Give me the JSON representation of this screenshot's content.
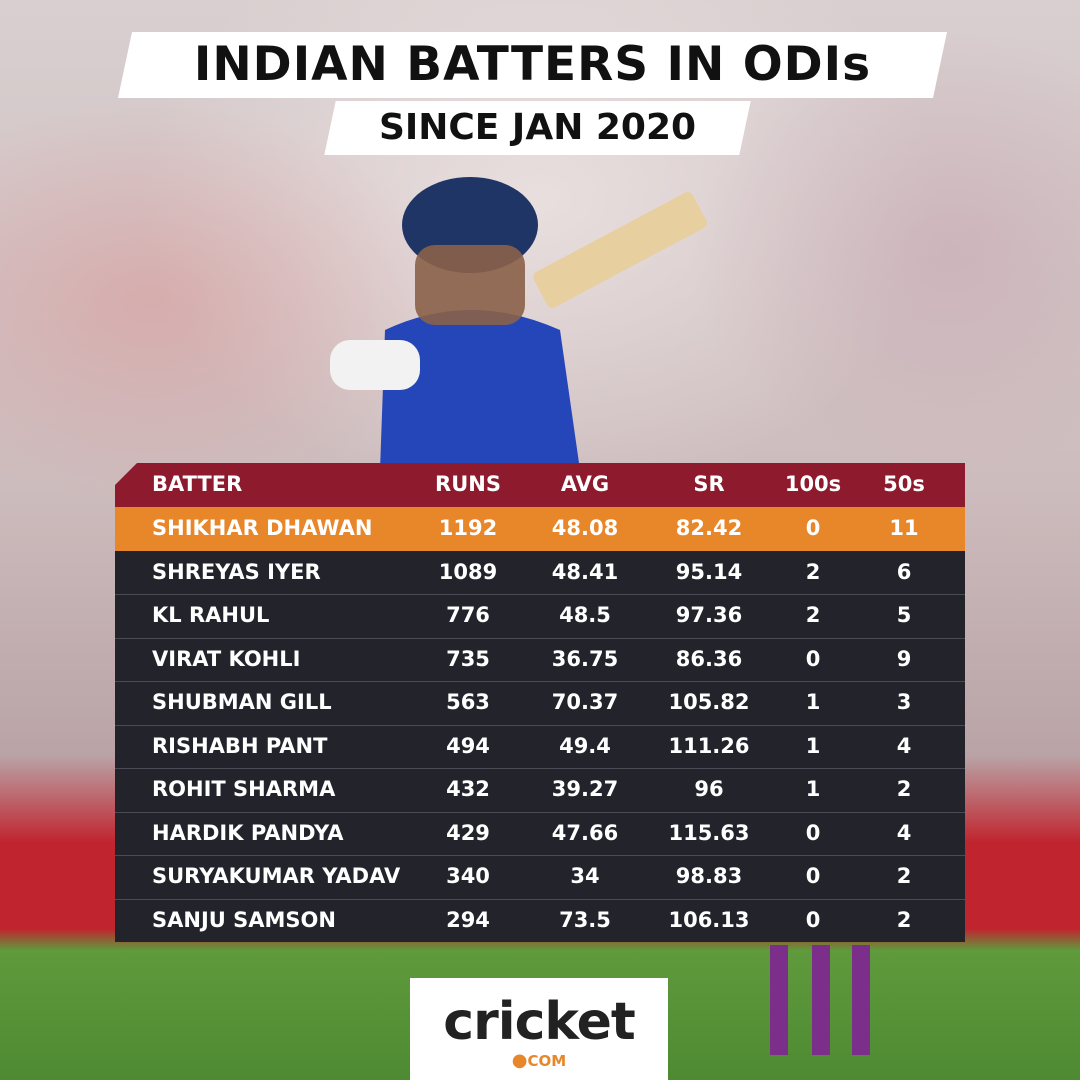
{
  "header": {
    "title": "INDIAN BATTERS IN ODIs",
    "subtitle": "SINCE JAN 2020"
  },
  "table": {
    "columns": [
      "BATTER",
      "RUNS",
      "AVG",
      "SR",
      "100s",
      "50s"
    ],
    "rows": [
      [
        "SHIKHAR DHAWAN",
        1192,
        48.08,
        82.42,
        0,
        11
      ],
      [
        "SHREYAS IYER",
        1089,
        48.41,
        95.14,
        2,
        6
      ],
      [
        "KL RAHUL",
        776,
        48.5,
        97.36,
        2,
        5
      ],
      [
        "VIRAT KOHLI",
        735,
        36.75,
        86.36,
        0,
        9
      ],
      [
        "SHUBMAN GILL",
        563,
        70.37,
        105.82,
        1,
        3
      ],
      [
        "RISHABH PANT",
        494,
        49.4,
        111.26,
        1,
        4
      ],
      [
        "ROHIT SHARMA",
        432,
        39.27,
        96,
        1,
        2
      ],
      [
        "HARDIK PANDYA",
        429,
        47.66,
        115.63,
        0,
        4
      ],
      [
        "SURYAKUMAR YADAV",
        340,
        34,
        98.83,
        0,
        2
      ],
      [
        "SANJU SAMSON",
        294,
        73.5,
        106.13,
        0,
        2
      ]
    ]
  },
  "logo": {
    "name": "cricket",
    "domain": "COM"
  }
}
